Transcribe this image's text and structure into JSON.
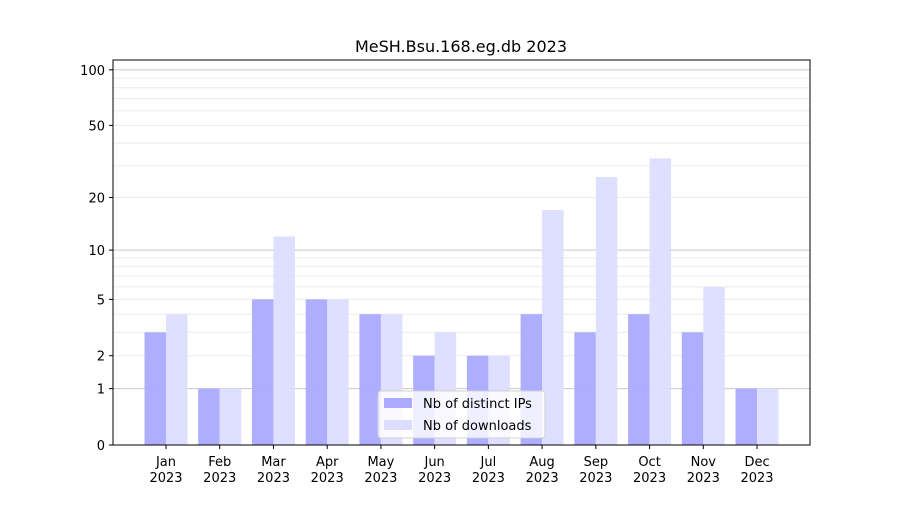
{
  "chart_data": {
    "type": "bar",
    "title": "MeSH.Bsu.168.eg.db 2023",
    "xlabel": "",
    "ylabel": "",
    "y_scale": "log10(1+y)",
    "ylim": [
      0,
      113
    ],
    "yticks": [
      0,
      1,
      2,
      5,
      10,
      20,
      50,
      100
    ],
    "grid": true,
    "legend_position": "bottom-center",
    "categories": [
      "Jan\n2023",
      "Feb\n2023",
      "Mar\n2023",
      "Apr\n2023",
      "May\n2023",
      "Jun\n2023",
      "Jul\n2023",
      "Aug\n2023",
      "Sep\n2023",
      "Oct\n2023",
      "Nov\n2023",
      "Dec\n2023"
    ],
    "series": [
      {
        "name": "Nb of distinct IPs",
        "color": "#aaaaff",
        "values": [
          3,
          1,
          5,
          5,
          4,
          2,
          2,
          4,
          3,
          4,
          3,
          1
        ]
      },
      {
        "name": "Nb of downloads",
        "color": "#ddddff",
        "values": [
          4,
          1,
          12,
          5,
          4,
          3,
          2,
          17,
          26,
          33,
          6,
          1
        ]
      }
    ]
  }
}
